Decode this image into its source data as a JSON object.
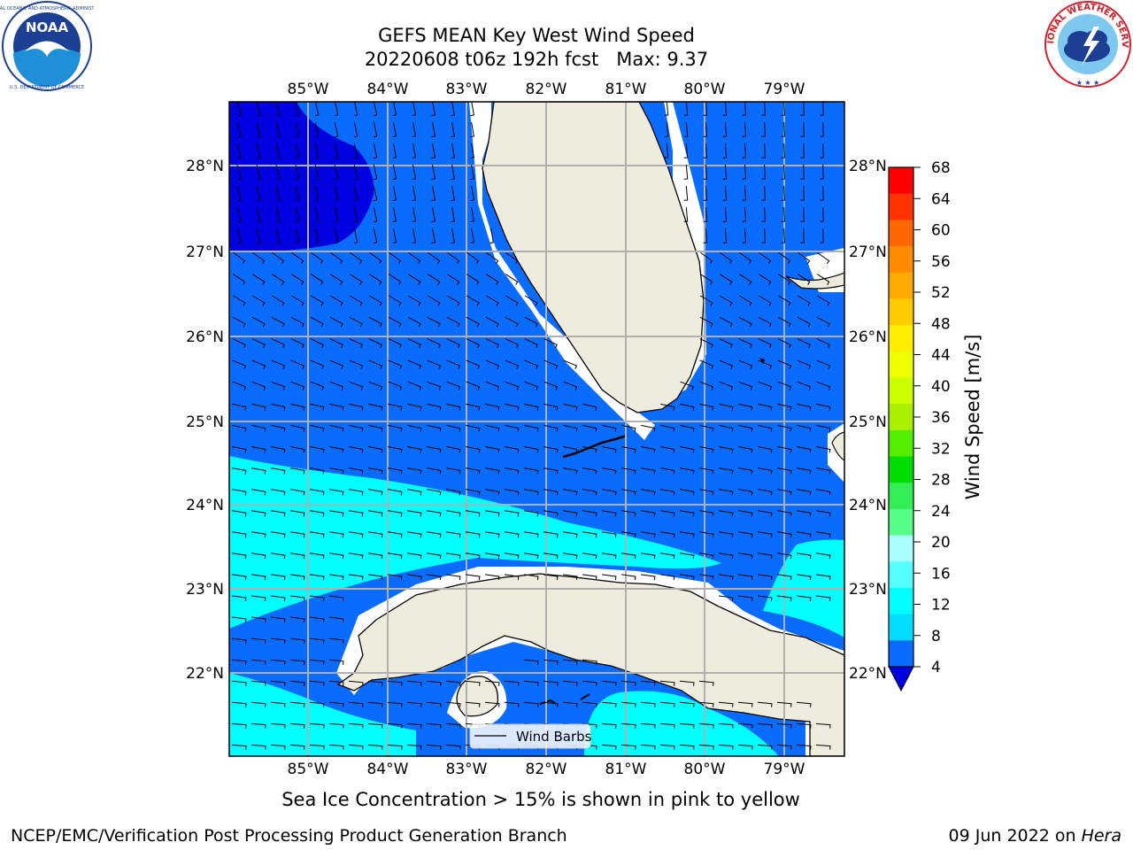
{
  "title": {
    "line1": "GEFS MEAN Key West Wind Speed",
    "line2": "20220608 t06z 192h fcst   Max: 9.37"
  },
  "logos": {
    "left": {
      "name": "NOAA",
      "text": "NOAA",
      "ring_text": "NATIONAL OCEANIC AND ATMOSPHERIC ADMINISTRATION · U.S. DEPARTMENT OF COMMERCE"
    },
    "right": {
      "name": "National Weather Service",
      "ring_text": "NATIONAL WEATHER SERVICE"
    }
  },
  "map": {
    "lon_labels": [
      "85°W",
      "84°W",
      "83°W",
      "82°W",
      "81°W",
      "80°W",
      "79°W"
    ],
    "lat_labels": [
      "28°N",
      "27°N",
      "26°N",
      "25°N",
      "24°N",
      "23°N",
      "22°N"
    ],
    "legend": "Wind Barbs",
    "colors": {
      "ocean_4_8": "#0a6cff",
      "ocean_below_4": "#0000e0",
      "ocean_8_12": "#00ffff",
      "land": "#eeecdc",
      "gridline": "#b0b0b0"
    }
  },
  "colorbar": {
    "label": "Wind Speed [m/s]",
    "ticks": [
      "68",
      "64",
      "60",
      "56",
      "52",
      "48",
      "44",
      "40",
      "36",
      "32",
      "28",
      "24",
      "20",
      "16",
      "12",
      "8",
      "4"
    ],
    "colors_top_to_bottom": [
      "#ff0000",
      "#ff3300",
      "#ff6600",
      "#ff8c00",
      "#ffaa00",
      "#ffcc00",
      "#ffee00",
      "#eeff00",
      "#ccff00",
      "#aaee00",
      "#55ee00",
      "#00dd00",
      "#33ee55",
      "#55ff88",
      "#aaffff",
      "#55ffff",
      "#00ffff",
      "#00ddff",
      "#0a6cff"
    ],
    "extend_color": "#0000e0"
  },
  "footnote": "Sea Ice Concentration > 15% is shown in pink to yellow",
  "credit": "NCEP/EMC/Verification Post Processing Product Generation Branch",
  "run_date": "09 Jun 2022 on",
  "run_host": "Hera"
}
